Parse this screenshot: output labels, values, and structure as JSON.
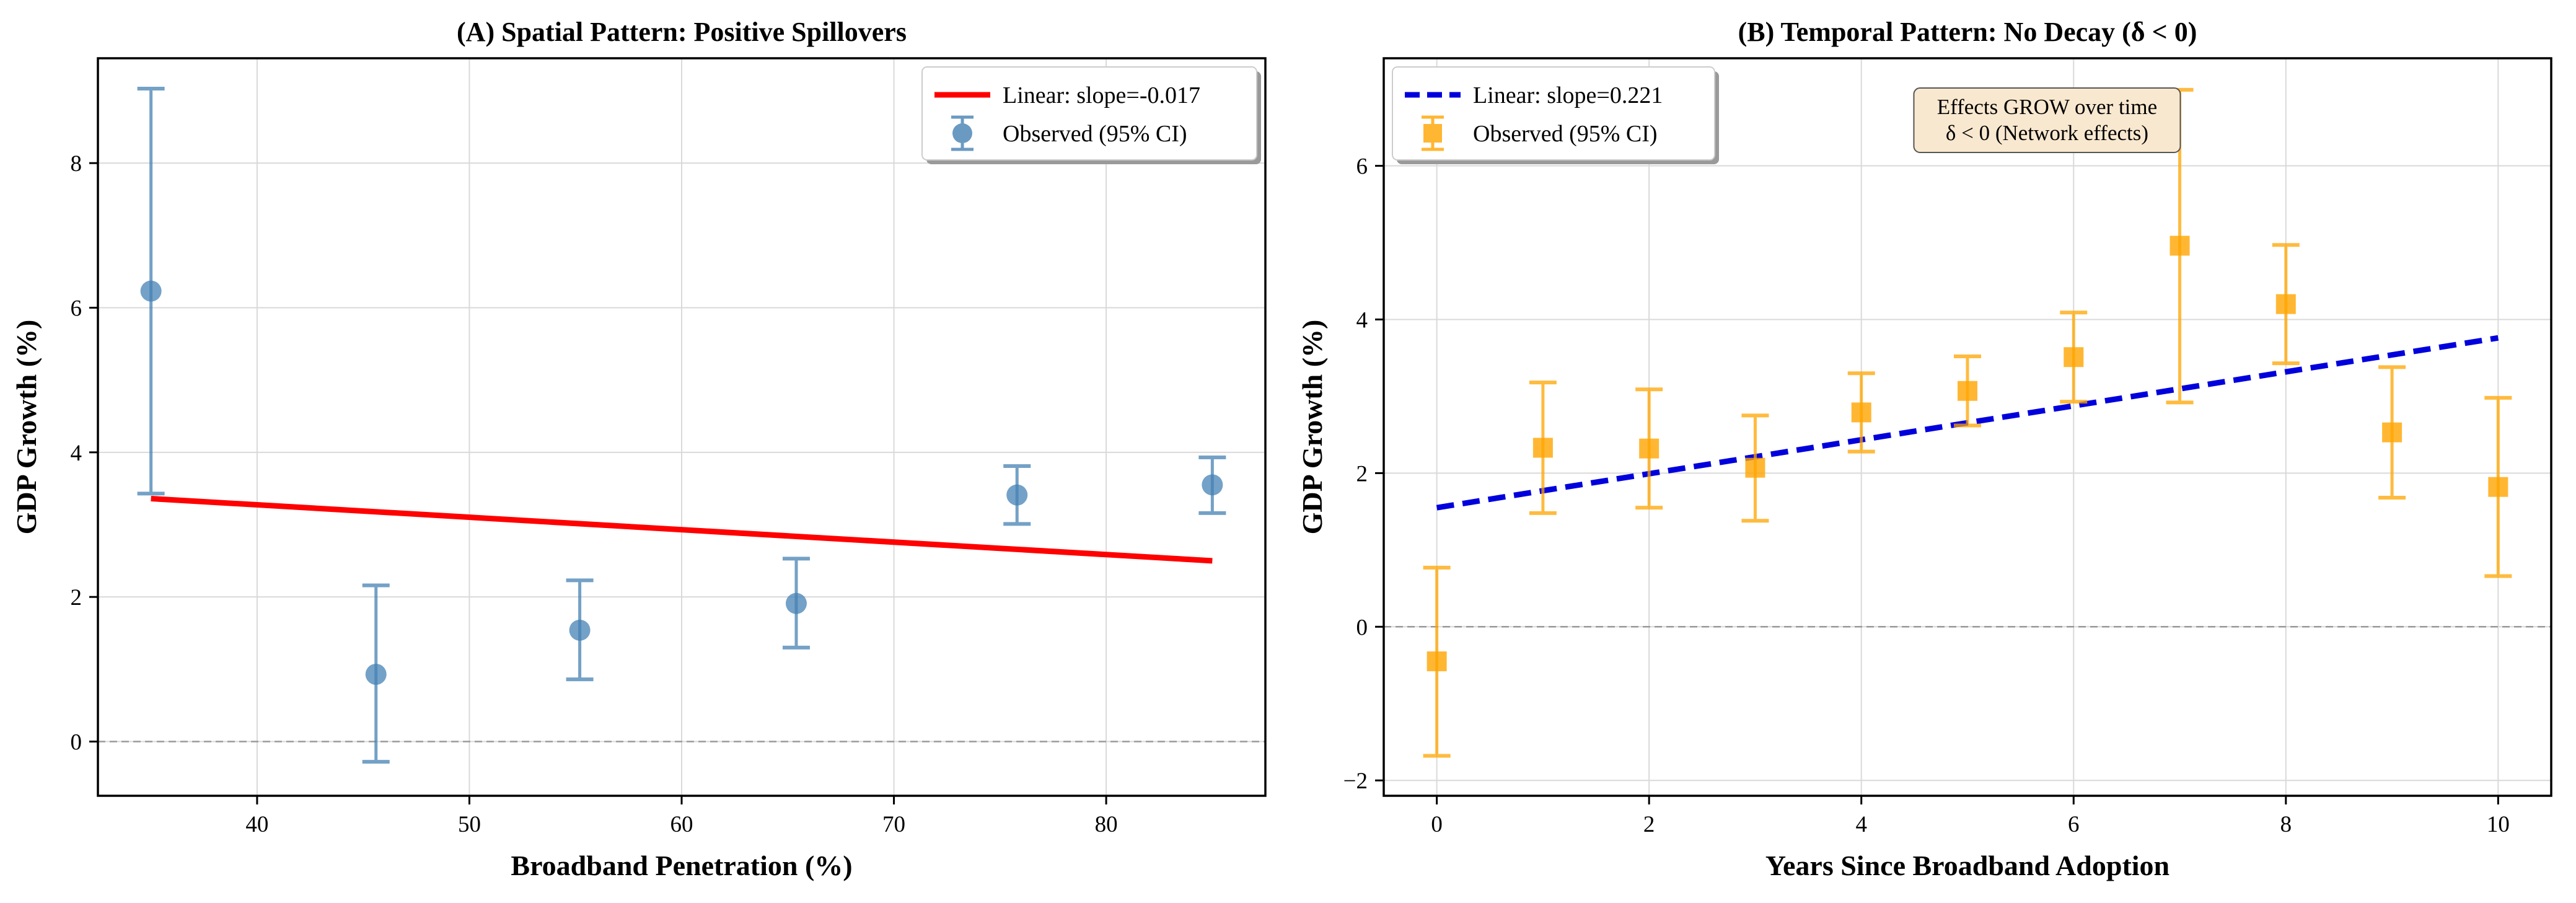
{
  "chart_data": [
    {
      "type": "scatter",
      "panel": "A",
      "title": "(A) Spatial Pattern: Positive Spillovers",
      "xlabel": "Broadband Penetration (%)",
      "ylabel": "GDP Growth (%)",
      "xlim": [
        32.5,
        87.5
      ],
      "ylim": [
        -0.75,
        9.45
      ],
      "xticks": [
        40,
        50,
        60,
        70,
        80
      ],
      "yticks": [
        0,
        2,
        4,
        6,
        8
      ],
      "xtick_labels": [
        "40",
        "50",
        "60",
        "70",
        "80"
      ],
      "ytick_labels": [
        "0",
        "2",
        "4",
        "6",
        "8"
      ],
      "grid": true,
      "zero_line": true,
      "observed": {
        "marker": "circle",
        "color": "#4682b4",
        "x": [
          35,
          45.6,
          55.2,
          65.4,
          75.8,
          85
        ],
        "y": [
          6.23,
          0.93,
          1.54,
          1.91,
          3.41,
          3.55
        ],
        "ci_low": [
          3.43,
          -0.28,
          0.86,
          1.3,
          3.01,
          3.16
        ],
        "ci_high": [
          9.03,
          2.16,
          2.23,
          2.53,
          3.81,
          3.93
        ]
      },
      "fit": {
        "color": "#ff0000",
        "style": "solid",
        "x": [
          35,
          85
        ],
        "y": [
          3.36,
          2.5
        ]
      },
      "legend": {
        "placement": "upper-right",
        "entries": [
          "Linear: slope=-0.017",
          "Observed (95% CI)"
        ]
      }
    },
    {
      "type": "scatter",
      "panel": "B",
      "title": "(B) Temporal Pattern: No Decay (δ < 0)",
      "xlabel": "Years Since Broadband Adoption",
      "ylabel": "GDP Growth (%)",
      "xlim": [
        -0.5,
        10.5
      ],
      "ylim": [
        -2.2,
        7.4
      ],
      "xticks": [
        0,
        2,
        4,
        6,
        8,
        10
      ],
      "yticks": [
        -2,
        0,
        2,
        4,
        6
      ],
      "xtick_labels": [
        "0",
        "2",
        "4",
        "6",
        "8",
        "10"
      ],
      "ytick_labels": [
        "−2",
        "0",
        "2",
        "4",
        "6"
      ],
      "grid": true,
      "zero_line": true,
      "observed": {
        "marker": "square",
        "color": "#ffa500",
        "x": [
          0,
          1,
          2,
          3,
          4,
          5,
          6,
          7,
          8,
          9,
          10
        ],
        "y": [
          -0.45,
          2.33,
          2.32,
          2.07,
          2.79,
          3.07,
          3.51,
          4.96,
          4.2,
          2.53,
          1.82
        ],
        "ci_low": [
          -1.68,
          1.48,
          1.55,
          1.38,
          2.28,
          2.62,
          2.93,
          2.92,
          3.43,
          1.68,
          0.66
        ],
        "ci_high": [
          0.77,
          3.18,
          3.09,
          2.75,
          3.3,
          3.52,
          4.09,
          6.99,
          4.97,
          3.38,
          2.98
        ]
      },
      "fit": {
        "color": "#0000dd",
        "style": "dashed",
        "x": [
          0,
          10
        ],
        "y": [
          1.55,
          3.76
        ]
      },
      "legend": {
        "placement": "upper-left",
        "entries": [
          "Linear: slope=0.221",
          "Observed (95% CI)"
        ]
      },
      "annotation": {
        "lines": [
          "Effects GROW over time",
          "δ < 0 (Network effects)"
        ],
        "background": "#f8e8cf"
      }
    }
  ]
}
